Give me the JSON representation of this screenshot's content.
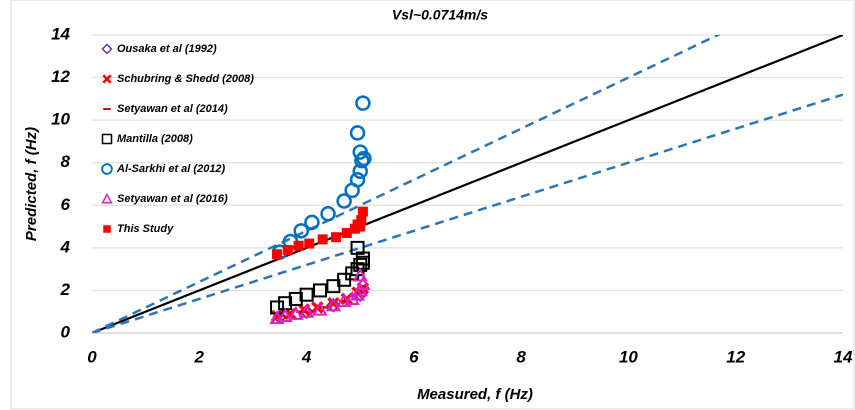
{
  "chart_data": {
    "type": "scatter",
    "title": "Vsl~0.0714m/s",
    "x_label": "Measured, f (Hz)",
    "y_label": "Predicted, f (Hz)",
    "xlim": [
      0,
      14
    ],
    "ylim": [
      0,
      14
    ],
    "xticks": [
      0,
      2,
      4,
      6,
      8,
      10,
      12,
      14
    ],
    "yticks": [
      0,
      2,
      4,
      6,
      8,
      10,
      12,
      14
    ],
    "grid": true,
    "legend": "upper left",
    "reference_lines": [
      {
        "slope": 1,
        "color": "#000000",
        "dashed": false
      },
      {
        "slope": 1.2,
        "color": "#2e75b6",
        "dashed": true
      },
      {
        "slope": 0.8,
        "color": "#2e75b6",
        "dashed": true
      }
    ],
    "series": [
      {
        "name": "Ousaka et al (1992)",
        "color": "#7030a0",
        "marker": "diamond",
        "x": [
          3.5,
          4.0,
          4.5,
          5.0
        ],
        "values": [
          0.75,
          1.0,
          1.3,
          1.8
        ]
      },
      {
        "name": "Schubring & Shedd (2008)",
        "color": "#ff0000",
        "marker": "x",
        "x": [
          3.45,
          3.7,
          3.95,
          4.2,
          4.5,
          4.75,
          4.95,
          5.05
        ],
        "values": [
          0.8,
          0.9,
          1.1,
          1.2,
          1.4,
          1.6,
          1.9,
          2.1
        ]
      },
      {
        "name": "Setyawan et al (2014)",
        "color": "#c00000",
        "marker": "dash",
        "x": [
          3.5,
          3.9,
          4.3,
          4.7,
          5.0,
          5.05
        ],
        "values": [
          0.8,
          1.0,
          1.2,
          1.5,
          1.9,
          2.2
        ]
      },
      {
        "name": "Mantilla (2008)",
        "color": "#000000",
        "marker": "square",
        "x": [
          3.45,
          3.6,
          3.8,
          4.0,
          4.25,
          4.5,
          4.7,
          4.85,
          4.95,
          5.0,
          5.05,
          4.95,
          5.05
        ],
        "values": [
          1.2,
          1.4,
          1.6,
          1.8,
          2.0,
          2.2,
          2.5,
          2.8,
          3.0,
          3.2,
          3.5,
          4.0,
          3.3
        ]
      },
      {
        "name": "Al-Sarkhi et al (2012)",
        "color": "#0070c0",
        "marker": "circle",
        "x": [
          3.5,
          3.7,
          3.9,
          4.1,
          4.4,
          4.7,
          4.85,
          4.95,
          5.0,
          5.03,
          5.0,
          4.95,
          5.05,
          5.07
        ],
        "values": [
          3.8,
          4.3,
          4.8,
          5.2,
          5.6,
          6.2,
          6.7,
          7.2,
          7.6,
          8.1,
          8.5,
          9.4,
          10.8,
          8.2
        ]
      },
      {
        "name": "Setyawan et al (2016)",
        "color": "#e020c0",
        "marker": "triangle",
        "x": [
          3.45,
          3.6,
          3.8,
          4.0,
          4.25,
          4.5,
          4.7,
          4.85,
          4.95,
          5.0,
          5.05,
          5.0
        ],
        "values": [
          0.7,
          0.8,
          0.9,
          1.0,
          1.1,
          1.3,
          1.5,
          1.6,
          1.8,
          2.0,
          2.3,
          2.7
        ]
      },
      {
        "name": "This Study",
        "color": "#ff0000",
        "marker": "filled-square",
        "x": [
          3.45,
          3.65,
          3.85,
          4.05,
          4.3,
          4.55,
          4.75,
          4.9,
          5.0,
          5.02,
          5.05,
          4.95
        ],
        "values": [
          3.7,
          3.9,
          4.1,
          4.2,
          4.4,
          4.5,
          4.7,
          4.9,
          5.0,
          5.3,
          5.7,
          5.1
        ]
      }
    ]
  }
}
